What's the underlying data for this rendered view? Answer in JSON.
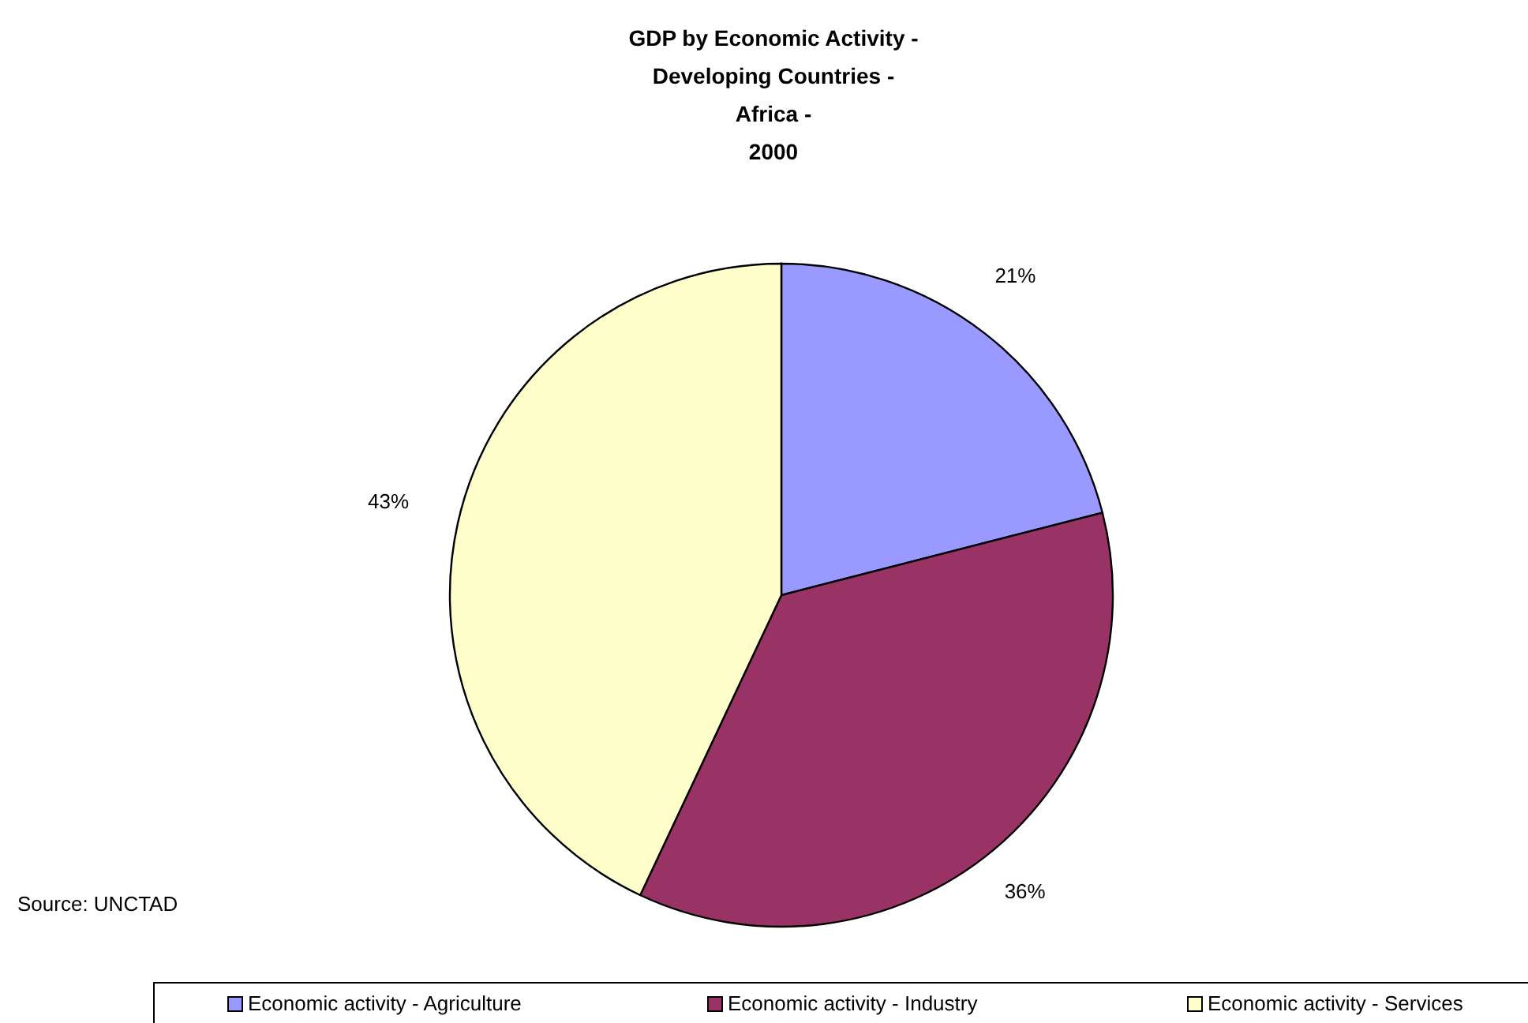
{
  "chart_data": {
    "type": "pie",
    "title": "GDP by Economic Activity -\nDeveloping Countries -\nAfrica -\n2000",
    "categories": [
      "Economic activity - Agriculture",
      "Economic activity - Industry",
      "Economic activity - Services"
    ],
    "values": [
      21,
      36,
      43
    ],
    "colors": [
      "#9999ff",
      "#993366",
      "#ffffcc"
    ],
    "value_labels": [
      "21%",
      "36%",
      "43%"
    ],
    "legend": "bottom",
    "annotations": [
      "Source: UNCTAD"
    ]
  }
}
